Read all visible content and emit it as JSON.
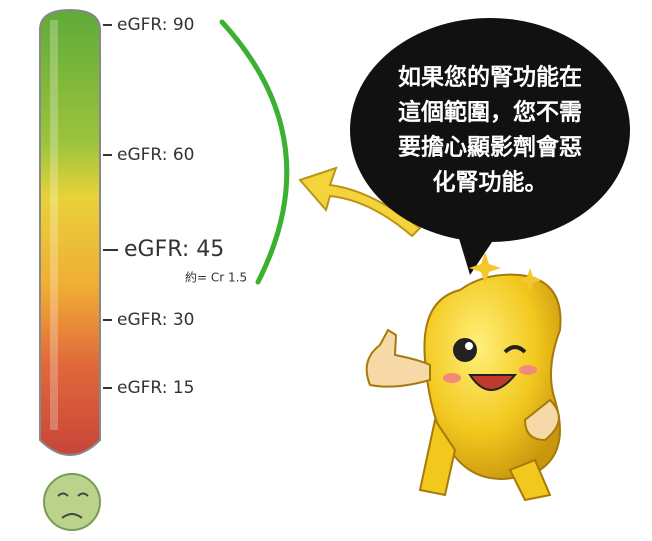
{
  "scale": {
    "labels": [
      "eGFR: 90",
      "eGFR: 60",
      "eGFR: 45",
      "eGFR: 30",
      "eGFR: 15"
    ],
    "note": "約= Cr 1.5"
  },
  "bubble": {
    "lines": [
      "如果您的腎功能在",
      "這個範圍，您不需",
      "要擔心顯影劑會惡",
      "化腎功能。"
    ]
  }
}
